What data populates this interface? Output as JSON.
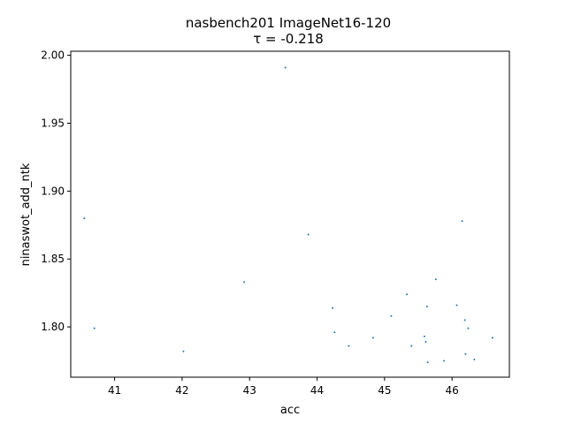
{
  "chart_data": {
    "type": "scatter",
    "title": "nasbench201 ImageNet16-120",
    "subtitle": "τ = -0.218",
    "xlabel": "acc",
    "ylabel": "ninaswot_add_ntk",
    "xlim": [
      40.35,
      46.85
    ],
    "ylim": [
      1.763,
      2.003
    ],
    "xticks": [
      41,
      42,
      43,
      44,
      45,
      46
    ],
    "yticks": [
      1.8,
      1.85,
      1.9,
      1.95,
      2.0
    ],
    "ytick_labels": [
      "1.80",
      "1.85",
      "1.90",
      "1.95",
      "2.00"
    ],
    "grid": false,
    "marker_color": "#1f77b4",
    "points": [
      {
        "x": 40.55,
        "y": 1.88
      },
      {
        "x": 40.7,
        "y": 1.799
      },
      {
        "x": 42.02,
        "y": 1.782
      },
      {
        "x": 42.92,
        "y": 1.833
      },
      {
        "x": 43.53,
        "y": 1.991
      },
      {
        "x": 43.87,
        "y": 1.868
      },
      {
        "x": 44.23,
        "y": 1.814
      },
      {
        "x": 44.26,
        "y": 1.796
      },
      {
        "x": 44.47,
        "y": 1.786
      },
      {
        "x": 44.83,
        "y": 1.792
      },
      {
        "x": 45.1,
        "y": 1.808
      },
      {
        "x": 45.33,
        "y": 1.824
      },
      {
        "x": 45.4,
        "y": 1.786
      },
      {
        "x": 45.59,
        "y": 1.793
      },
      {
        "x": 45.61,
        "y": 1.789
      },
      {
        "x": 45.63,
        "y": 1.815
      },
      {
        "x": 45.64,
        "y": 1.774
      },
      {
        "x": 45.76,
        "y": 1.835
      },
      {
        "x": 45.88,
        "y": 1.775
      },
      {
        "x": 46.07,
        "y": 1.816
      },
      {
        "x": 46.15,
        "y": 1.878
      },
      {
        "x": 46.19,
        "y": 1.805
      },
      {
        "x": 46.2,
        "y": 1.78
      },
      {
        "x": 46.24,
        "y": 1.799
      },
      {
        "x": 46.33,
        "y": 1.776
      },
      {
        "x": 46.6,
        "y": 1.792
      }
    ]
  }
}
